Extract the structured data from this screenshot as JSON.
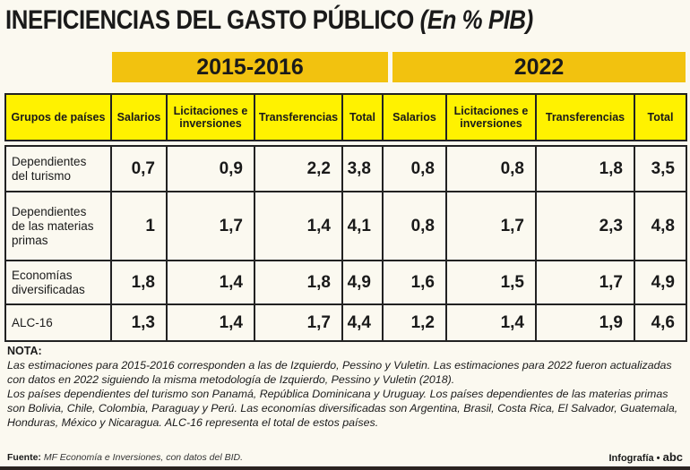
{
  "title": {
    "main": "INEFICIENCIAS DEL GASTO PÚBLICO",
    "unit": "(En % PIB)"
  },
  "periods": [
    "2015-2016",
    "2022"
  ],
  "columns": [
    "Grupos de países",
    "Salarios",
    "Licitaciones e inversiones",
    "Transferencias",
    "Total",
    "Salarios",
    "Licitaciones e inversiones",
    "Transferencias",
    "Total"
  ],
  "rows": [
    {
      "group": "Dependientes del turismo",
      "values": [
        "0,7",
        "0,9",
        "2,2",
        "3,8",
        "0,8",
        "0,8",
        "1,8",
        "3,5"
      ]
    },
    {
      "group": "Dependientes de las materias primas",
      "values": [
        "1",
        "1,7",
        "1,4",
        "4,1",
        "0,8",
        "1,7",
        "2,3",
        "4,8"
      ]
    },
    {
      "group": "Economías diversificadas",
      "values": [
        "1,8",
        "1,4",
        "1,8",
        "4,9",
        "1,6",
        "1,5",
        "1,7",
        "4,9"
      ]
    },
    {
      "group": "ALC-16",
      "values": [
        "1,3",
        "1,4",
        "1,7",
        "4,4",
        "1,2",
        "1,4",
        "1,9",
        "4,6"
      ]
    }
  ],
  "note": {
    "label": "NOTA:",
    "lines": [
      "Las estimaciones para 2015-2016 corresponden a las de Izquierdo, Pessino y Vuletin. Las estimaciones para 2022 fueron actualizadas con datos en 2022 siguiendo la misma metodología de Izquierdo, Pessino y Vuletin (2018).",
      "Los países dependientes del turismo son Panamá, República Dominicana y Uruguay. Los países dependientes de las materias primas son Bolivia, Chile, Colombia, Paraguay y Perú. Las economías diversificadas son Argentina, Brasil, Costa Rica, El Salvador, Guatemala, Honduras, México y Nicaragua. ALC-16 representa el total de estos países."
    ]
  },
  "source": {
    "label": "Fuente:",
    "text": "MF Economía e Inversiones, con datos del BID."
  },
  "credit": {
    "text": "Infografía •",
    "logo": "abc"
  }
}
